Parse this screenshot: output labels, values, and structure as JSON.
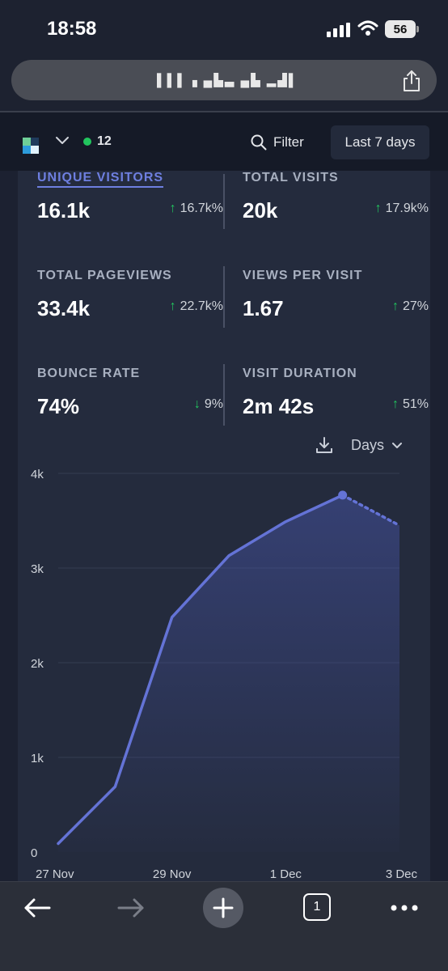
{
  "status_bar": {
    "time": "18:58",
    "battery": "56"
  },
  "browser": {
    "url_text": "▌▌▌ ▖▄▙▃ ▄▙ ▂▟▌"
  },
  "header": {
    "live_count": "12",
    "filter_label": "Filter",
    "date_range": "Last 7 days"
  },
  "stats": [
    {
      "label": "UNIQUE VISITORS",
      "value": "16.1k",
      "change": "16.7k%",
      "direction": "up",
      "active": true
    },
    {
      "label": "TOTAL VISITS",
      "value": "20k",
      "change": "17.9k%",
      "direction": "up"
    },
    {
      "label": "TOTAL PAGEVIEWS",
      "value": "33.4k",
      "change": "22.7k%",
      "direction": "up"
    },
    {
      "label": "VIEWS PER VISIT",
      "value": "1.67",
      "change": "27%",
      "direction": "up"
    },
    {
      "label": "BOUNCE RATE",
      "value": "74%",
      "change": "9%",
      "direction": "down"
    },
    {
      "label": "VISIT DURATION",
      "value": "2m 42s",
      "change": "51%",
      "direction": "up"
    }
  ],
  "interval_label": "Days",
  "colors": {
    "accent": "#6e7fe0",
    "positive": "#22c55e",
    "background": "#242b3d"
  },
  "chart_data": {
    "type": "line",
    "x": [
      "27 Nov",
      "28 Nov",
      "29 Nov",
      "30 Nov",
      "1 Dec",
      "2 Dec",
      "3 Dec"
    ],
    "x_tick_labels": [
      "27 Nov",
      "29 Nov",
      "1 Dec",
      "3 Dec"
    ],
    "series": [
      {
        "values": [
          90,
          690,
          2480,
          3130,
          3490,
          3770,
          3450
        ]
      }
    ],
    "y_ticks": [
      "0",
      "1k",
      "2k",
      "3k",
      "4k"
    ],
    "ylim": [
      0,
      4000
    ],
    "dotted_last_segment": true,
    "grid": true
  },
  "toolbar": {
    "tab_count": "1"
  }
}
